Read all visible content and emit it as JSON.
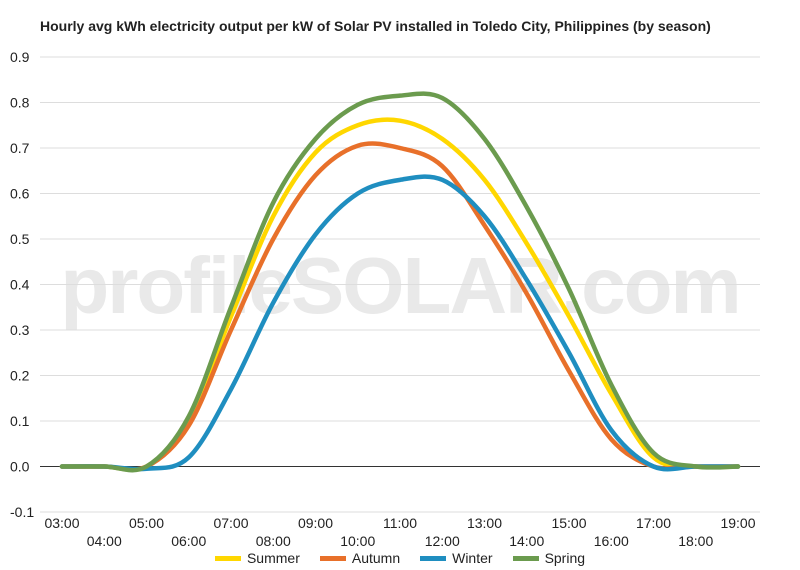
{
  "chart_data": {
    "type": "line",
    "title": "Hourly avg kWh electricity output per kW of Solar PV installed in Toledo City, Philippines (by season)",
    "xlabel": "",
    "ylabel": "",
    "ylim": [
      -0.1,
      0.9
    ],
    "yticks": [
      "0.9",
      "0.8",
      "0.7",
      "0.6",
      "0.5",
      "0.4",
      "0.3",
      "0.2",
      "0.1",
      "0.0",
      "-0.1"
    ],
    "categories": [
      "03:00",
      "04:00",
      "05:00",
      "06:00",
      "07:00",
      "08:00",
      "09:00",
      "10:00",
      "11:00",
      "12:00",
      "13:00",
      "14:00",
      "15:00",
      "16:00",
      "17:00",
      "18:00",
      "19:00"
    ],
    "series": [
      {
        "name": "Summer",
        "color": "#FFD700",
        "values": [
          0.0,
          0.0,
          0.0,
          0.1,
          0.33,
          0.55,
          0.69,
          0.75,
          0.76,
          0.72,
          0.63,
          0.49,
          0.33,
          0.16,
          0.02,
          0.0,
          0.0
        ]
      },
      {
        "name": "Autumn",
        "color": "#E8702A",
        "values": [
          0.0,
          0.0,
          0.0,
          0.09,
          0.3,
          0.5,
          0.64,
          0.705,
          0.7,
          0.66,
          0.53,
          0.38,
          0.21,
          0.06,
          0.0,
          0.0,
          0.0
        ]
      },
      {
        "name": "Winter",
        "color": "#1F8EC0",
        "values": [
          0.0,
          0.0,
          -0.005,
          0.02,
          0.17,
          0.36,
          0.51,
          0.6,
          0.63,
          0.63,
          0.55,
          0.41,
          0.25,
          0.08,
          0.0,
          0.0,
          0.0
        ]
      },
      {
        "name": "Spring",
        "color": "#6B9B4E",
        "values": [
          0.0,
          0.0,
          0.0,
          0.11,
          0.35,
          0.58,
          0.72,
          0.795,
          0.815,
          0.81,
          0.72,
          0.57,
          0.39,
          0.18,
          0.03,
          0.0,
          0.0
        ]
      }
    ],
    "grid": true,
    "legend_position": "bottom"
  },
  "watermark": "profileSOLAR.com"
}
